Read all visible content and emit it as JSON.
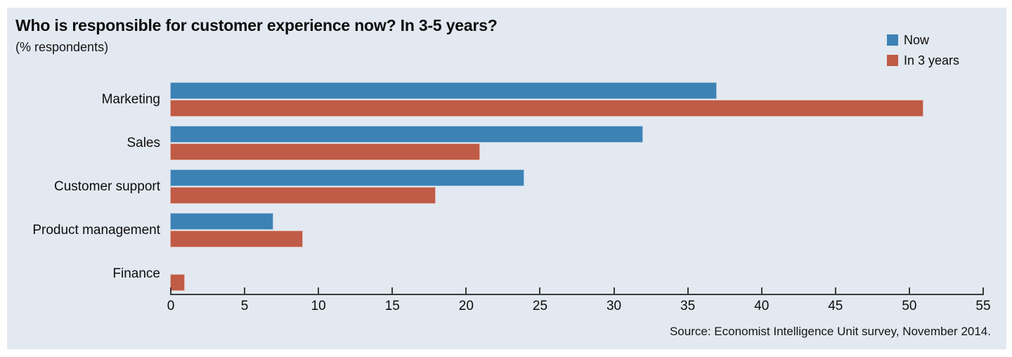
{
  "page": {
    "title": "Who is responsible for customer experience now? In 3-5 years?",
    "subtitle": "(% respondents)",
    "source": "Source: Economist Intelligence Unit survey, November 2014."
  },
  "chart_data": {
    "type": "bar",
    "orientation": "horizontal",
    "title": "Who is responsible for customer experience now? In 3-5 years?",
    "subtitle": "(% respondents)",
    "categories": [
      "Marketing",
      "Sales",
      "Customer support",
      "Product management",
      "Finance"
    ],
    "series": [
      {
        "name": "Now",
        "color": "#3d82b5",
        "values": [
          37,
          32,
          24,
          7,
          0
        ]
      },
      {
        "name": "In 3 years",
        "color": "#bf5b46",
        "values": [
          51,
          21,
          18,
          9,
          1
        ]
      }
    ],
    "xlabel": "",
    "ylabel": "",
    "xlim": [
      0,
      55
    ],
    "xticks": [
      0,
      5,
      10,
      15,
      20,
      25,
      30,
      35,
      40,
      45,
      50,
      55
    ],
    "grid": false,
    "legend_position": "top-right",
    "background_color": "#e3e9f1",
    "source": "Source: Economist Intelligence Unit survey, November 2014."
  }
}
